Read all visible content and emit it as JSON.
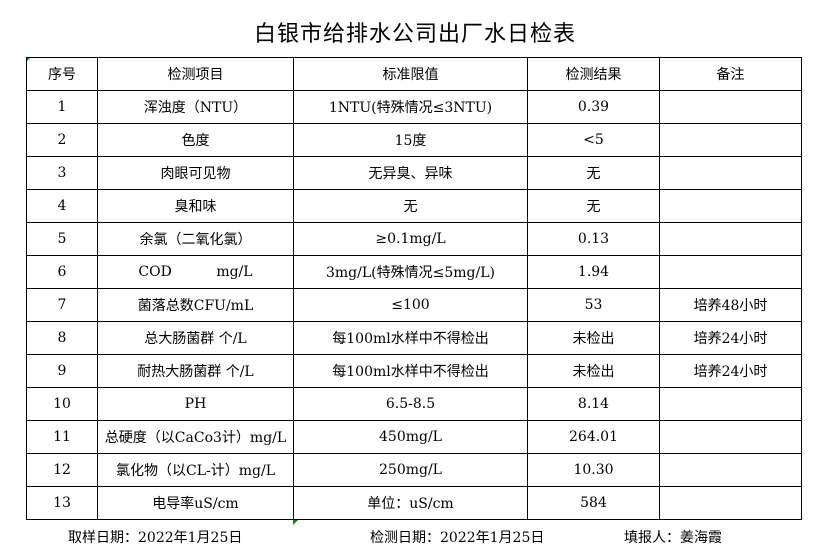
{
  "title": "白银市给排水公司出厂水日检表",
  "headers": [
    "序号",
    "检测项目",
    "标准限值",
    "检测结果",
    "备注"
  ],
  "rows": [
    [
      "1",
      "浑浊度（NTU）",
      "1NTU(特殊情况≤3NTU)",
      "0.39",
      ""
    ],
    [
      "2",
      "色度",
      "15度",
      "<5",
      ""
    ],
    [
      "3",
      "肉眼可见物",
      "无异臭、异味",
      "无",
      ""
    ],
    [
      "4",
      "臭和味",
      "无",
      "无",
      ""
    ],
    [
      "5",
      "余氯（二氧化氯）",
      "≥0.1mg/L",
      "0.13",
      ""
    ],
    [
      "6",
      "COD          mg/L",
      "3mg/L(特殊情况≤5mg/L)",
      "1.94",
      ""
    ],
    [
      "7",
      "菌落总数CFU/mL",
      "≤100",
      "53",
      "培养48小时"
    ],
    [
      "8",
      "总大肠菌群 个/L",
      "每100ml水样中不得检出",
      "未检出",
      "培养24小时"
    ],
    [
      "9",
      "耐热大肠菌群 个/L",
      "每100ml水样中不得检出",
      "未检出",
      "培养24小时"
    ],
    [
      "10",
      "PH",
      "6.5-8.5",
      "8.14",
      ""
    ],
    [
      "11",
      "总硬度（以CaCo3计）mg/L",
      "450mg/L",
      "264.01",
      ""
    ],
    [
      "12",
      "氯化物（以CL-计）mg/L",
      "250mg/L",
      "10.30",
      ""
    ],
    [
      "13",
      "电导率uS/cm",
      "单位：uS/cm",
      "584",
      ""
    ]
  ],
  "footer": {
    "sample_date": "取样日期：2022年1月25日",
    "test_date": "检测日期：2022年1月25日",
    "reporter": "填报人：姜海霞"
  }
}
